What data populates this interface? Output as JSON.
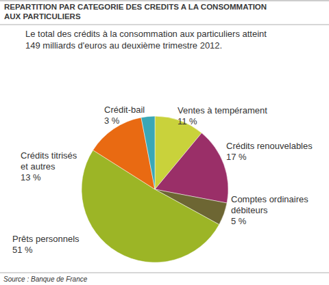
{
  "chart_data": {
    "type": "pie",
    "title": "REPARTITION PAR CATEGORIE DES CREDITS A LA CONSOMMATION AUX PARTICULIERS",
    "subtitle": "Le total des crédits à la consommation aux particuliers atteint 149 milliards d'euros au deuxième trimestre 2012.",
    "source": "Source : Banque de France",
    "categories": [
      "Ventes à tempérament",
      "Crédits renouvelables",
      "Comptes ordinaires débiteurs",
      "Prêts personnels",
      "Crédits titrisés et autres",
      "Crédit-bail"
    ],
    "values": [
      11,
      17,
      5,
      51,
      13,
      3
    ],
    "value_labels": [
      "11 %",
      "17 %",
      "5 %",
      "51 %",
      "13 %",
      "3 %"
    ],
    "colors": [
      "#c9d23b",
      "#9a2f68",
      "#6d6633",
      "#9cb526",
      "#e96a12",
      "#3aa7b6"
    ],
    "data_labels": true
  }
}
